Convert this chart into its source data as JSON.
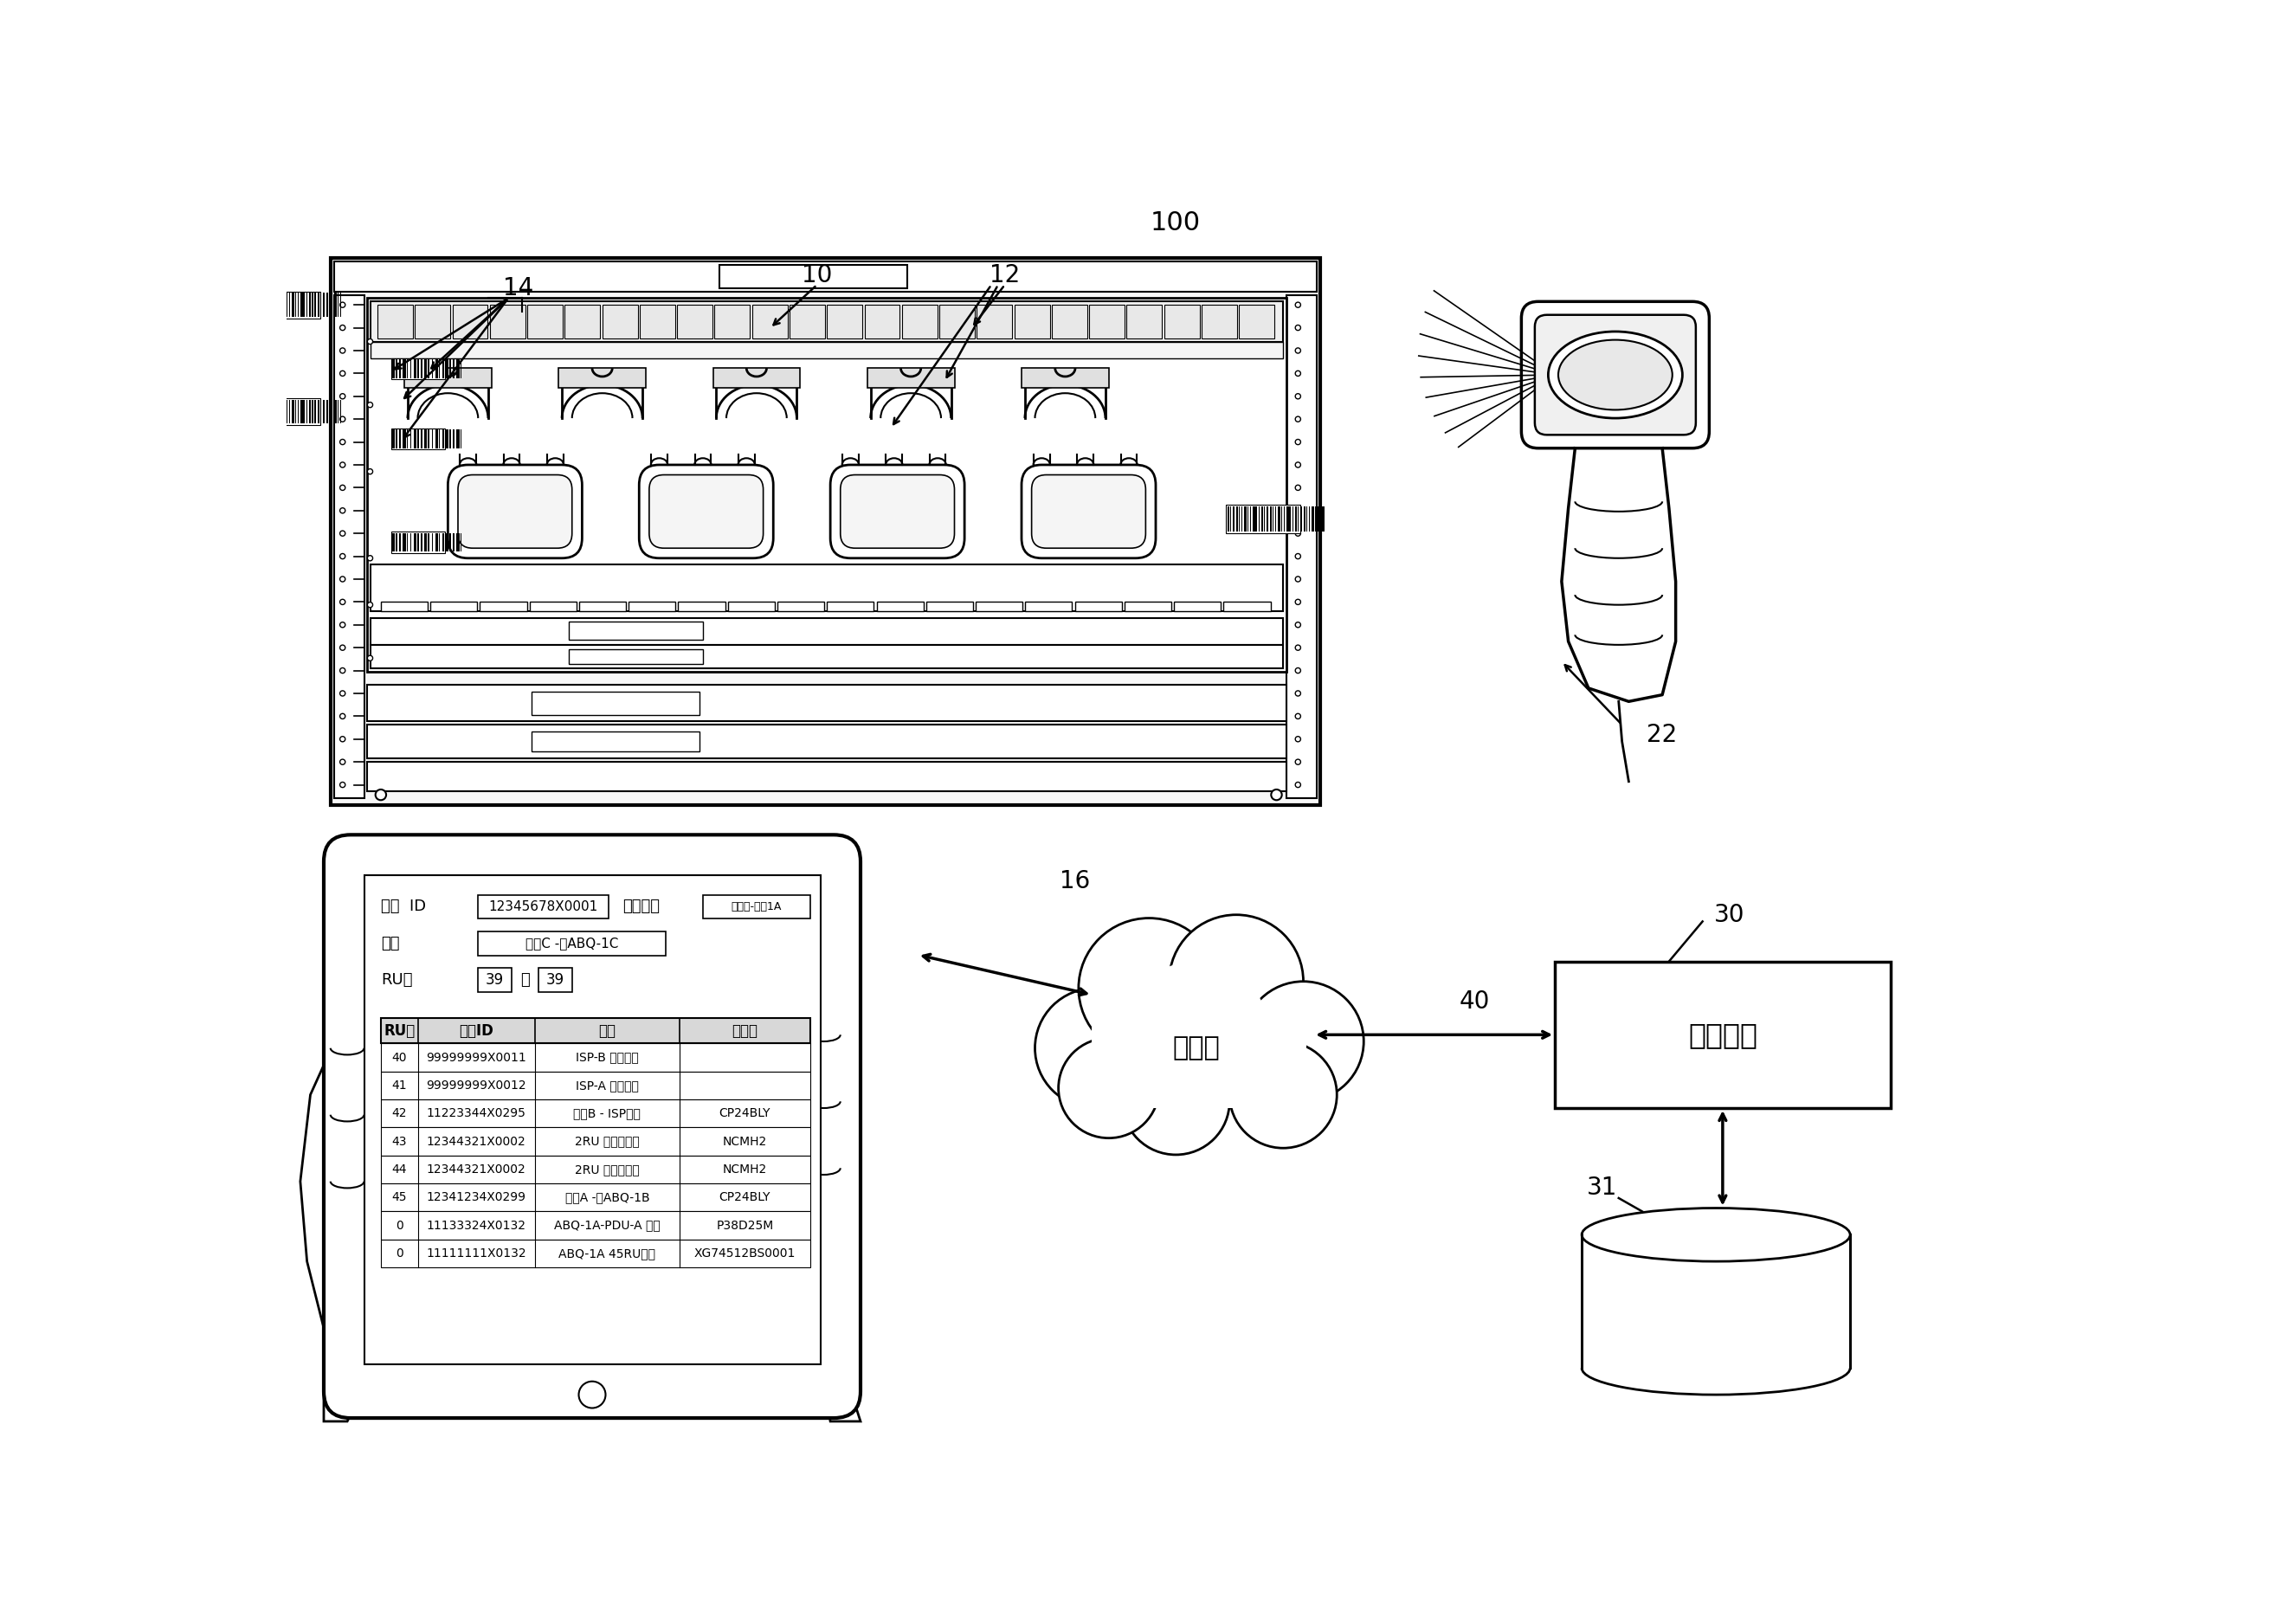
{
  "title": "100",
  "label_10": "10",
  "label_12": "12",
  "label_14": "14",
  "label_16": "16",
  "label_22": "22",
  "label_30": "30",
  "label_31": "31",
  "label_40": "40",
  "internet_label": "因特网",
  "portal_label": "装备门户",
  "rack_id_label": "机架  ID",
  "rack_id_value": "12345678X0001",
  "rack_name_label": "机架名称",
  "rack_name_value": "芝加哥-机架1A",
  "annotation_label": "注解",
  "annotation_value": "面板C -到ABQ-1C",
  "ru_label": "RU号",
  "ru_from": "39",
  "ru_to_text": "到",
  "ru_to": "39",
  "table_headers": [
    "RU号",
    "机架ID",
    "注解",
    "部件号"
  ],
  "table_rows": [
    [
      "40",
      "99999999X0011",
      "ISP-B 气流齿轮",
      ""
    ],
    [
      "41",
      "99999999X0012",
      "ISP-A 凹面齿轮",
      ""
    ],
    [
      "42",
      "11223344X0295",
      "面板B - ISP连接",
      "CP24BLY"
    ],
    [
      "43",
      "12344321X0002",
      "2RU 电缆管理器",
      "NCMH2"
    ],
    [
      "44",
      "12344321X0002",
      "2RU 电缆管理器",
      "NCMH2"
    ],
    [
      "45",
      "12341234X0299",
      "面板A -到ABQ-1B",
      "CP24BLY"
    ],
    [
      "0",
      "11133324X0132",
      "ABQ-1A-PDU-A 左側",
      "P38D25M"
    ],
    [
      "0",
      "11111111X0132",
      "ABQ-1A 45RU机柜",
      "XG74512BS0001"
    ]
  ],
  "bg_color": "#ffffff",
  "line_color": "#000000"
}
